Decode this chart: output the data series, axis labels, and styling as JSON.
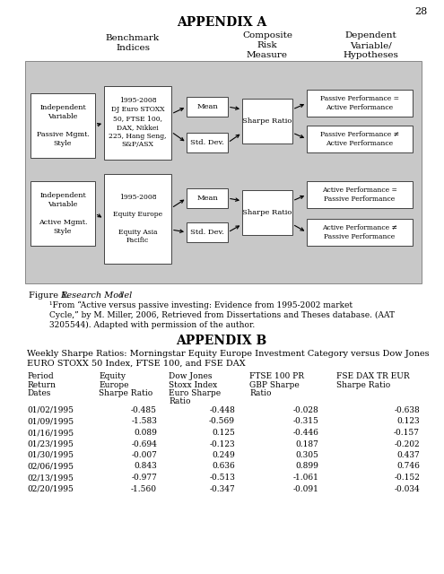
{
  "page_number": "28",
  "bg_color": "#ffffff",
  "appendix_a_title": "APPENDIX A",
  "appendix_b_title": "APPENDIX B",
  "diagram_bg": "#c8c8c8",
  "box_bg": "#ffffff",
  "row1": {
    "iv_text": "Independent\nVariable\n\nPassive Mgmt.\nStyle",
    "bm_text": "1995-2008\nDJ Euro STOXX\n50, FTSE 100,\nDAX, Nikkei\n225, Hang Seng,\nS&P/ASX",
    "mean_text": "Mean",
    "std_text": "Std. Dev.",
    "sharpe_text": "Sharpe Ratio",
    "hyp1_text": "Passive Performance =\nActive Performance",
    "hyp2_text": "Passive Performance ≠\nActive Performance"
  },
  "row2": {
    "iv_text": "Independent\nVariable\n\nActive Mgmt.\nStyle",
    "bm_text": "1995-2008\n\nEquity Europe\n\nEquity Asia\nPacific",
    "mean_text": "Mean",
    "std_text": "Std. Dev.",
    "sharpe_text": "Sharpe Ratio",
    "hyp1_text": "Active Performance =\nPassive Performance",
    "hyp2_text": "Active Performance ≠\nPassive Performance"
  },
  "hdr_benchmark": "Benchmark\nIndices",
  "hdr_composite": "Composite\nRisk\nMeasure",
  "hdr_dependent": "Dependent\nVariable/\nHypotheses",
  "fig_caption_plain": "Figure 1. ",
  "fig_caption_italic": "Research Model",
  "fig_caption_super": "1",
  "footnote1": "¹From “Active versus passive investing: Evidence from 1995-2002 market",
  "footnote2": "Cycle,” by M. Miller, 2006, Retrieved from Dissertations and Theses database. (AAT",
  "footnote3": "3205544). Adapted with permission of the author.",
  "table_title1": "Weekly Sharpe Ratios: Morningstar Equity Europe Investment Category versus Dow Jones",
  "table_title2": "EURO STOXX 50 Index, FTSE 100, and FSE DAX",
  "col_hdr1": [
    "Period",
    "Return",
    "Dates"
  ],
  "col_hdr2": [
    "Equity",
    "Europe",
    "Sharpe Ratio"
  ],
  "col_hdr3": [
    "Dow Jones",
    "Stoxx Index",
    "Euro Sharpe",
    "Ratio"
  ],
  "col_hdr4": [
    "FTSE 100 PR",
    "GBP Sharpe",
    "Ratio"
  ],
  "col_hdr5": [
    "FSE DAX TR EUR",
    "Sharpe Ratio"
  ],
  "table_data": [
    [
      "01/02/1995",
      "-0.485",
      "-0.448",
      "-0.028",
      "-0.638"
    ],
    [
      "01/09/1995",
      "-1.583",
      "-0.569",
      "-0.315",
      "0.123"
    ],
    [
      "01/16/1995",
      "0.089",
      "0.125",
      "-0.446",
      "-0.157"
    ],
    [
      "01/23/1995",
      "-0.694",
      "-0.123",
      "0.187",
      "-0.202"
    ],
    [
      "01/30/1995",
      "-0.007",
      "0.249",
      "0.305",
      "0.437"
    ],
    [
      "02/06/1995",
      "0.843",
      "0.636",
      "0.899",
      "0.746"
    ],
    [
      "02/13/1995",
      "-0.977",
      "-0.513",
      "-1.061",
      "-0.152"
    ],
    [
      "02/20/1995",
      "-1.560",
      "-0.347",
      "-0.091",
      "-0.034"
    ]
  ]
}
